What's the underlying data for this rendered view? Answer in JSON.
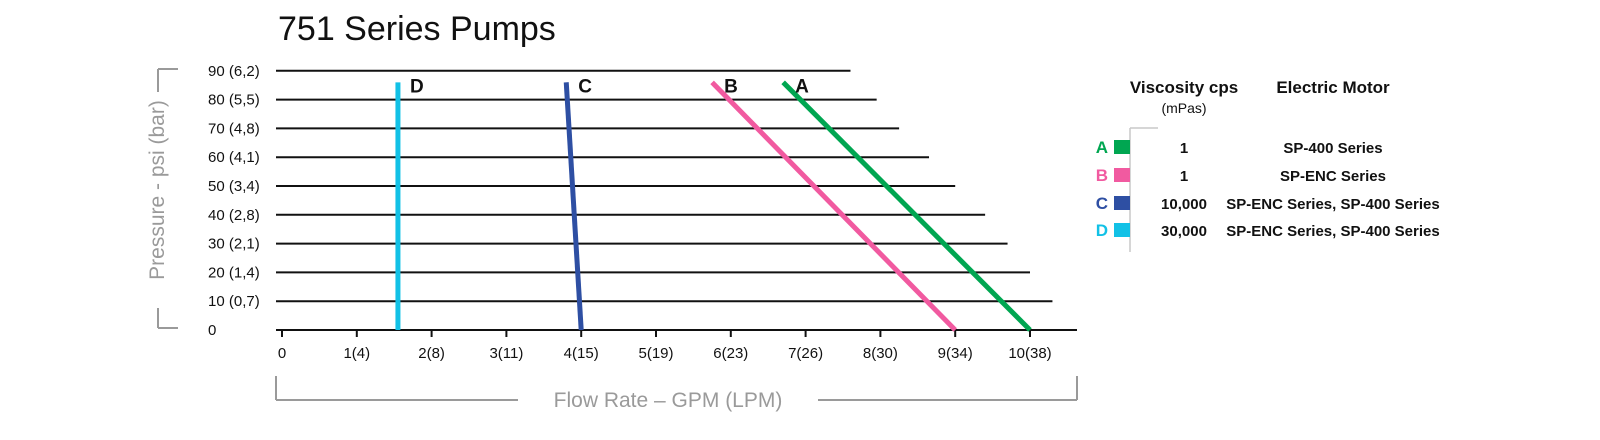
{
  "chart_data": {
    "type": "line",
    "title": "751 Series Pumps",
    "xlabel": "Flow Rate – GPM (LPM)",
    "ylabel": "Pressure - psi (bar)",
    "xlim": [
      0,
      10.5
    ],
    "ylim": [
      0,
      90
    ],
    "x_ticks": [
      {
        "value": 0,
        "label": "0"
      },
      {
        "value": 1,
        "label": "1(4)"
      },
      {
        "value": 2,
        "label": "2(8)"
      },
      {
        "value": 3,
        "label": "3(11)"
      },
      {
        "value": 4,
        "label": "4(15)"
      },
      {
        "value": 5,
        "label": "5(19)"
      },
      {
        "value": 6,
        "label": "6(23)"
      },
      {
        "value": 7,
        "label": "7(26)"
      },
      {
        "value": 8,
        "label": "8(30)"
      },
      {
        "value": 9,
        "label": "9(34)"
      },
      {
        "value": 10,
        "label": "10(38)"
      }
    ],
    "y_ticks": [
      {
        "value": 0,
        "label": "0",
        "line_end": 0
      },
      {
        "value": 10,
        "label": "10  (0,7)",
        "line_end": 10.3
      },
      {
        "value": 20,
        "label": "20  (1,4)",
        "line_end": 10.0
      },
      {
        "value": 30,
        "label": "30  (2,1)",
        "line_end": 9.7
      },
      {
        "value": 40,
        "label": "40  (2,8)",
        "line_end": 9.4
      },
      {
        "value": 50,
        "label": "50  (3,4)",
        "line_end": 9.0
      },
      {
        "value": 60,
        "label": "60  (4,1)",
        "line_end": 8.65
      },
      {
        "value": 70,
        "label": "70  (4,8)",
        "line_end": 8.25
      },
      {
        "value": 80,
        "label": "80  (5,5)",
        "line_end": 7.95
      },
      {
        "value": 90,
        "label": "90  (6,2)",
        "line_end": 7.6
      }
    ],
    "series": [
      {
        "name": "A",
        "color": "#00a651",
        "points": [
          [
            6.7,
            86
          ],
          [
            10.0,
            0
          ]
        ]
      },
      {
        "name": "B",
        "color": "#f15aa0",
        "points": [
          [
            5.75,
            86
          ],
          [
            9.0,
            0
          ]
        ]
      },
      {
        "name": "C",
        "color": "#2e4fa3",
        "points": [
          [
            3.8,
            86
          ],
          [
            4.0,
            0
          ]
        ]
      },
      {
        "name": "D",
        "color": "#12c1e6",
        "points": [
          [
            1.55,
            86
          ],
          [
            1.55,
            0
          ]
        ]
      }
    ],
    "legend": {
      "position": "right",
      "head_viscosity": "Viscosity cps",
      "head_viscosity_unit": "(mPas)",
      "head_motor": "Electric Motor",
      "rows": [
        {
          "letter": "A",
          "color": "#00a651",
          "viscosity": "1",
          "motor": "SP-400 Series"
        },
        {
          "letter": "B",
          "color": "#f15aa0",
          "viscosity": "1",
          "motor": "SP-ENC Series"
        },
        {
          "letter": "C",
          "color": "#2e4fa3",
          "viscosity": "10,000",
          "motor": "SP-ENC Series, SP-400 Series"
        },
        {
          "letter": "D",
          "color": "#12c1e6",
          "viscosity": "30,000",
          "motor": "SP-ENC Series, SP-400 Series"
        }
      ]
    }
  }
}
